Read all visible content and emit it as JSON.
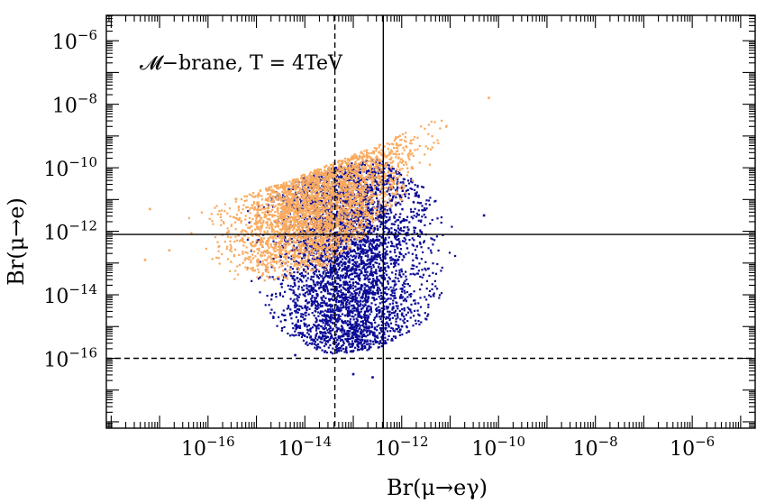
{
  "chart_data": {
    "type": "scatter",
    "annotation": "𝓜−brane, T = 4TeV",
    "xlabel": "Br(μ→eγ)",
    "ylabel": "Br(μ→e)",
    "x_scale": "log",
    "y_scale": "log",
    "xlim_log10": [
      -18.1,
      -4.7
    ],
    "ylim_log10": [
      -18.2,
      -5.2
    ],
    "x_ticks": [
      {
        "exp": -16,
        "base": "10",
        "sup": "−16"
      },
      {
        "exp": -14,
        "base": "10",
        "sup": "−14"
      },
      {
        "exp": -12,
        "base": "10",
        "sup": "−12"
      },
      {
        "exp": -10,
        "base": "10",
        "sup": "−10"
      },
      {
        "exp": -8,
        "base": "10",
        "sup": "−8"
      },
      {
        "exp": -6,
        "base": "10",
        "sup": "−6"
      }
    ],
    "y_ticks": [
      {
        "exp": -6,
        "base": "10",
        "sup": "−6"
      },
      {
        "exp": -8,
        "base": "10",
        "sup": "−8"
      },
      {
        "exp": -10,
        "base": "10",
        "sup": "−10"
      },
      {
        "exp": -12,
        "base": "10",
        "sup": "−12"
      },
      {
        "exp": -14,
        "base": "10",
        "sup": "−14"
      },
      {
        "exp": -16,
        "base": "10",
        "sup": "−16"
      }
    ],
    "reference_lines": [
      {
        "orientation": "vertical",
        "log10_value": -13.38,
        "style": "dashed"
      },
      {
        "orientation": "vertical",
        "log10_value": -12.38,
        "style": "solid"
      },
      {
        "orientation": "horizontal",
        "log10_value": -12.1,
        "style": "solid"
      },
      {
        "orientation": "horizontal",
        "log10_value": -16.0,
        "style": "dashed"
      }
    ],
    "series": [
      {
        "name": "blue points",
        "color": "#0a0a96",
        "density_envelope_log10": [
          {
            "x": -15.3,
            "y_min": -13.5,
            "y_max": -11.2
          },
          {
            "x": -14.5,
            "y_min": -15.2,
            "y_max": -10.6
          },
          {
            "x": -13.5,
            "y_min": -15.9,
            "y_max": -10.0
          },
          {
            "x": -12.5,
            "y_min": -15.7,
            "y_max": -9.7
          },
          {
            "x": -11.5,
            "y_min": -14.9,
            "y_max": -10.6
          },
          {
            "x": -10.8,
            "y_min": -13.2,
            "y_max": -11.5
          }
        ],
        "outliers_log10": [
          {
            "x": -13.0,
            "y": -16.5
          },
          {
            "x": -12.6,
            "y": -16.6
          },
          {
            "x": -10.3,
            "y": -11.5
          },
          {
            "x": -14.2,
            "y": -15.9
          }
        ]
      },
      {
        "name": "orange points",
        "color": "#f9aa5e",
        "density_envelope_log10": [
          {
            "x": -16.5,
            "y_min": -12.6,
            "y_max": -11.6
          },
          {
            "x": -15.5,
            "y_min": -13.6,
            "y_max": -11.0
          },
          {
            "x": -14.5,
            "y_min": -13.6,
            "y_max": -10.5
          },
          {
            "x": -13.5,
            "y_min": -13.2,
            "y_max": -9.9
          },
          {
            "x": -12.5,
            "y_min": -11.9,
            "y_max": -9.3
          },
          {
            "x": -11.5,
            "y_min": -10.2,
            "y_max": -8.6
          },
          {
            "x": -10.9,
            "y_min": -9.0,
            "y_max": -8.3
          }
        ],
        "outliers_log10": [
          {
            "x": -17.2,
            "y": -11.3
          },
          {
            "x": -17.3,
            "y": -12.9
          },
          {
            "x": -16.8,
            "y": -12.6
          },
          {
            "x": -10.2,
            "y": -7.8
          }
        ]
      }
    ]
  }
}
